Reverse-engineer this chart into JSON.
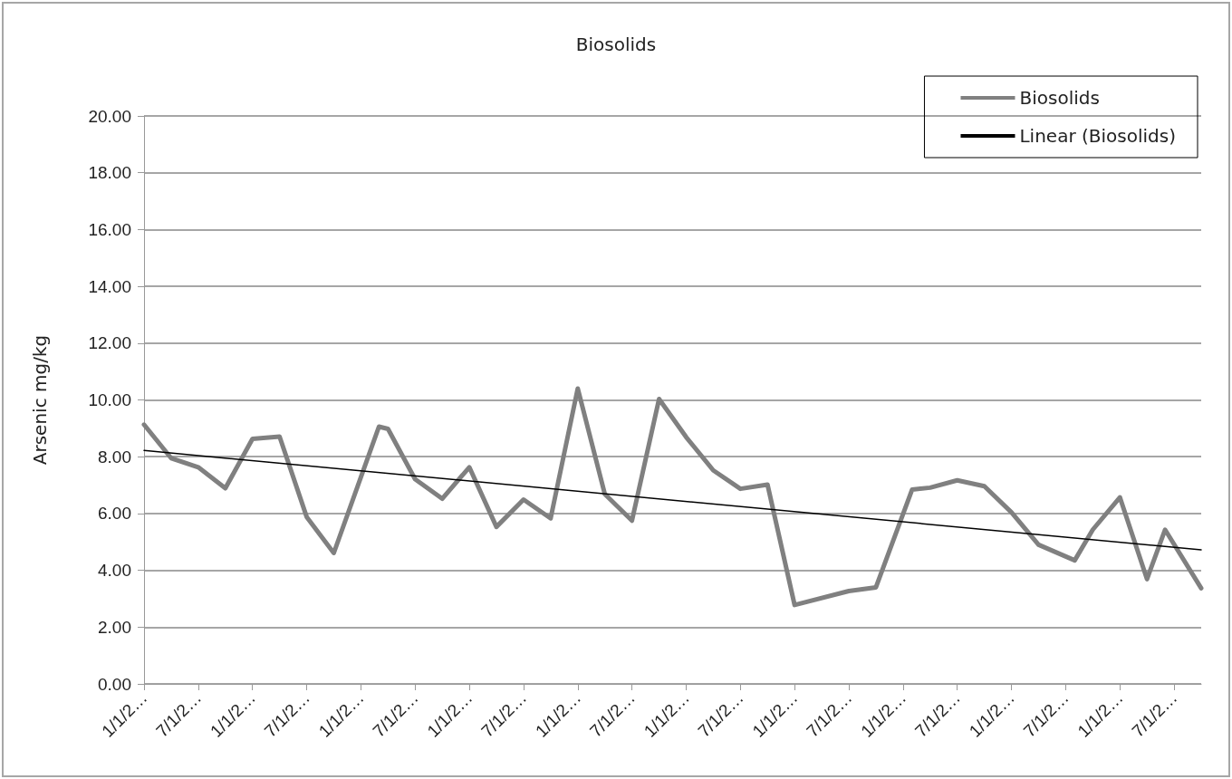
{
  "chart_data": {
    "type": "line",
    "title": "Biosolids",
    "ylabel": "Arsenic mg/kg",
    "categories": [
      "1/1/2…",
      null,
      null,
      null,
      null,
      null,
      "7/1/2…",
      null,
      null,
      null,
      null,
      null,
      "1/1/2…",
      null,
      null,
      null,
      null,
      null,
      "7/1/2…",
      null,
      null,
      null,
      null,
      null,
      "1/1/2…",
      null,
      null,
      null,
      null,
      null,
      "7/1/2…",
      null,
      null,
      null,
      null,
      null,
      "1/1/2…",
      null,
      null,
      null,
      null,
      null,
      "7/1/2…",
      null,
      null,
      null,
      null,
      null,
      "1/1/2…",
      null,
      null,
      null,
      null,
      null,
      "7/1/2…",
      null,
      null,
      null,
      null,
      null,
      "1/1/2…",
      null,
      null,
      null,
      null,
      null,
      "7/1/2…",
      null,
      null,
      null,
      null,
      null,
      "1/1/2…",
      null,
      null,
      null,
      null,
      null,
      "7/1/2…",
      null,
      null,
      null,
      null,
      null,
      "1/1/2…",
      null,
      null,
      null,
      null,
      null,
      "7/1/2…",
      null,
      null,
      null,
      null,
      null,
      "1/1/2…",
      null,
      null,
      null,
      null,
      null,
      "7/1/2…",
      null,
      null,
      null,
      null,
      null,
      "1/1/2…",
      null,
      null,
      null,
      null,
      null,
      "7/1/2…",
      null,
      null,
      null
    ],
    "ylim": [
      0,
      20
    ],
    "yticks": [
      {
        "value": 0,
        "label": "0.00"
      },
      {
        "value": 2,
        "label": "2.00"
      },
      {
        "value": 4,
        "label": "4.00"
      },
      {
        "value": 6,
        "label": "6.00"
      },
      {
        "value": 8,
        "label": "8.00"
      },
      {
        "value": 10,
        "label": "10.00"
      },
      {
        "value": 12,
        "label": "12.00"
      },
      {
        "value": 14,
        "label": "14.00"
      },
      {
        "value": 16,
        "label": "16.00"
      },
      {
        "value": 18,
        "label": "18.00"
      },
      {
        "value": 20,
        "label": "20.00"
      }
    ],
    "grid": "y",
    "legend": "top right",
    "marker": "none",
    "line_style": "solid",
    "series": [
      {
        "name": "Biosolids",
        "color": "#808080",
        "values": [
          9.13,
          null,
          null,
          7.95,
          null,
          null,
          7.63,
          null,
          null,
          6.89,
          null,
          null,
          8.63,
          null,
          null,
          8.71,
          null,
          null,
          5.88,
          null,
          null,
          4.61,
          null,
          null,
          null,
          null,
          9.06,
          8.98,
          null,
          null,
          7.21,
          null,
          null,
          6.52,
          null,
          null,
          7.63,
          null,
          null,
          5.53,
          null,
          null,
          6.49,
          null,
          null,
          5.83,
          null,
          null,
          10.4,
          null,
          null,
          6.68,
          null,
          null,
          5.75,
          null,
          null,
          10.03,
          null,
          null,
          8.69,
          null,
          null,
          7.52,
          null,
          null,
          6.87,
          null,
          null,
          7.02,
          null,
          null,
          2.78,
          null,
          null,
          null,
          null,
          null,
          3.27,
          null,
          null,
          3.4,
          null,
          null,
          null,
          6.84,
          null,
          6.91,
          null,
          null,
          7.17,
          null,
          null,
          6.96,
          null,
          null,
          6.04,
          null,
          null,
          4.9,
          null,
          null,
          null,
          4.35,
          null,
          5.43,
          null,
          null,
          6.57,
          null,
          null,
          3.69,
          null,
          5.43,
          null,
          null,
          null,
          3.37
        ]
      },
      {
        "name": "Linear (Biosolids)",
        "color": "#000000",
        "values": [
          8.22,
          null,
          null,
          null,
          null,
          null,
          null,
          null,
          null,
          null,
          null,
          null,
          null,
          null,
          null,
          null,
          null,
          null,
          null,
          null,
          null,
          null,
          null,
          null,
          null,
          null,
          null,
          null,
          null,
          null,
          null,
          null,
          null,
          null,
          null,
          null,
          null,
          null,
          null,
          null,
          null,
          null,
          null,
          null,
          null,
          null,
          null,
          null,
          null,
          null,
          null,
          null,
          null,
          null,
          null,
          null,
          null,
          null,
          null,
          null,
          null,
          null,
          null,
          null,
          null,
          null,
          null,
          null,
          null,
          null,
          null,
          null,
          null,
          null,
          null,
          null,
          null,
          null,
          null,
          null,
          null,
          null,
          null,
          null,
          null,
          null,
          null,
          null,
          null,
          null,
          null,
          null,
          null,
          null,
          null,
          null,
          null,
          null,
          null,
          null,
          null,
          null,
          null,
          null,
          null,
          null,
          null,
          null,
          null,
          null,
          null,
          null,
          null,
          null,
          null,
          null,
          null,
          4.72
        ]
      }
    ]
  }
}
